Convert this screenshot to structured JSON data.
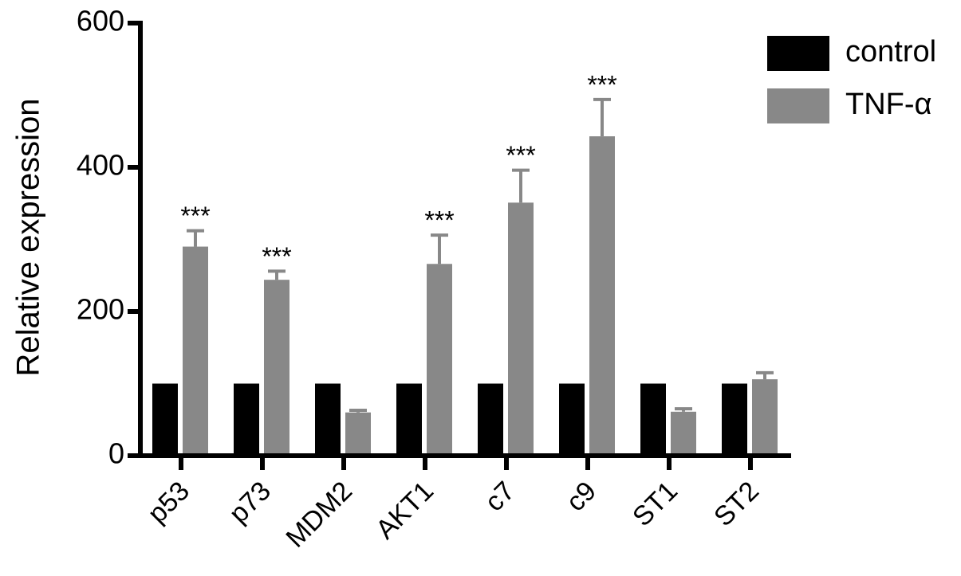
{
  "chart_data": {
    "type": "bar",
    "y_label": "Relative expression",
    "categories": [
      "p53",
      "p73",
      "MDM2",
      "AKT1",
      "c7",
      "c9",
      "ST1",
      "ST2"
    ],
    "series": [
      {
        "name": "control",
        "color": "#000000",
        "values": [
          100,
          100,
          100,
          100,
          100,
          100,
          100,
          100
        ]
      },
      {
        "name": "TNF-α",
        "color": "#888888",
        "values": [
          290,
          244,
          60,
          266,
          351,
          443,
          61,
          106
        ],
        "errors": [
          22,
          12,
          3,
          40,
          45,
          51,
          4,
          9
        ]
      }
    ],
    "annotations": [
      "***",
      "***",
      null,
      "***",
      "***",
      "***",
      null,
      null
    ],
    "ylim": [
      0,
      600
    ],
    "yticks": [
      0,
      200,
      400,
      600
    ],
    "legend": "upper right"
  }
}
